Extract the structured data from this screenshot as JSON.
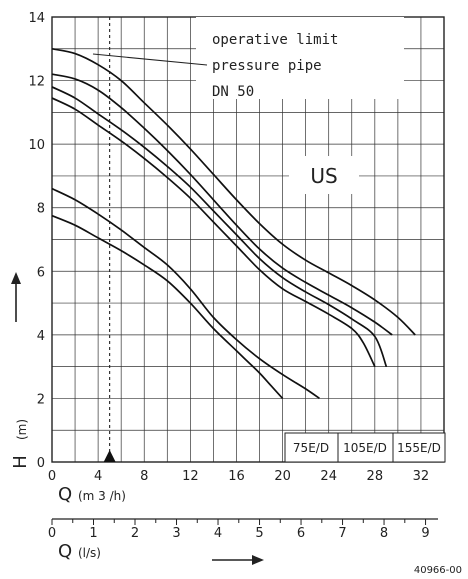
{
  "chart_data": {
    "type": "line",
    "xlabel": "Q",
    "xlabel_unit": "(m 3 /h)",
    "ylabel": "H",
    "ylabel_unit": "(m)",
    "secondary_xlabel": "Q",
    "secondary_xlabel_unit": "(l/s)",
    "xlim": [
      0,
      34
    ],
    "ylim": [
      0,
      14
    ],
    "x_ticks": [
      "0",
      "4",
      "8",
      "12",
      "16",
      "20",
      "24",
      "28",
      "32"
    ],
    "y_ticks": [
      "0",
      "2",
      "4",
      "6",
      "8",
      "10",
      "12",
      "14"
    ],
    "secondary_x_ticks": [
      "0",
      "1",
      "2",
      "3",
      "4",
      "5",
      "6",
      "7",
      "8",
      "9"
    ],
    "grid": true,
    "operating_point_q": 5.0,
    "annotation_lines": [
      "operative limit",
      "pressure pipe",
      "DN 50"
    ],
    "region_label": "US",
    "model_labels": [
      "75E/D",
      "105E/D",
      "155E/D"
    ],
    "figure_id": "40966-00",
    "series": [
      {
        "x": [
          0,
          2,
          4,
          6,
          8,
          10,
          12,
          14,
          16,
          17,
          18,
          19,
          20
        ],
        "y": [
          7.75,
          7.45,
          7.05,
          6.65,
          6.2,
          5.7,
          5.0,
          4.2,
          3.5,
          3.15,
          2.8,
          2.4,
          2.0
        ]
      },
      {
        "x": [
          0,
          2,
          4,
          6,
          8,
          10,
          12,
          14,
          16,
          18,
          20,
          22,
          23.2
        ],
        "y": [
          8.6,
          8.25,
          7.8,
          7.3,
          6.75,
          6.2,
          5.45,
          4.55,
          3.85,
          3.25,
          2.75,
          2.3,
          2.0
        ]
      },
      {
        "x": [
          0,
          2,
          4,
          6,
          8,
          10,
          12,
          14,
          16,
          18,
          20,
          22,
          24,
          26,
          27,
          28
        ],
        "y": [
          11.45,
          11.1,
          10.6,
          10.1,
          9.55,
          8.95,
          8.3,
          7.55,
          6.8,
          6.05,
          5.45,
          5.05,
          4.65,
          4.2,
          3.75,
          3.0
        ]
      },
      {
        "x": [
          0,
          2,
          4,
          6,
          8,
          10,
          12,
          14,
          16,
          18,
          20,
          22,
          24,
          26,
          28,
          29
        ],
        "y": [
          11.8,
          11.45,
          10.95,
          10.45,
          9.9,
          9.3,
          8.65,
          7.9,
          7.15,
          6.4,
          5.8,
          5.35,
          4.95,
          4.5,
          3.95,
          3.0
        ]
      },
      {
        "x": [
          0,
          2,
          4,
          6,
          8,
          10,
          12,
          14,
          16,
          18,
          20,
          22,
          24,
          26,
          28,
          29.5
        ],
        "y": [
          12.2,
          12.05,
          11.7,
          11.15,
          10.5,
          9.8,
          9.05,
          8.25,
          7.45,
          6.7,
          6.1,
          5.65,
          5.25,
          4.85,
          4.4,
          4.0
        ]
      },
      {
        "x": [
          0,
          2,
          4,
          6,
          8,
          10,
          12,
          14,
          16,
          18,
          20,
          22,
          24,
          26,
          28,
          30,
          31.5
        ],
        "y": [
          13.0,
          12.85,
          12.5,
          12.0,
          11.3,
          10.6,
          9.85,
          9.05,
          8.25,
          7.5,
          6.85,
          6.35,
          5.95,
          5.55,
          5.1,
          4.55,
          4.0
        ]
      }
    ]
  }
}
